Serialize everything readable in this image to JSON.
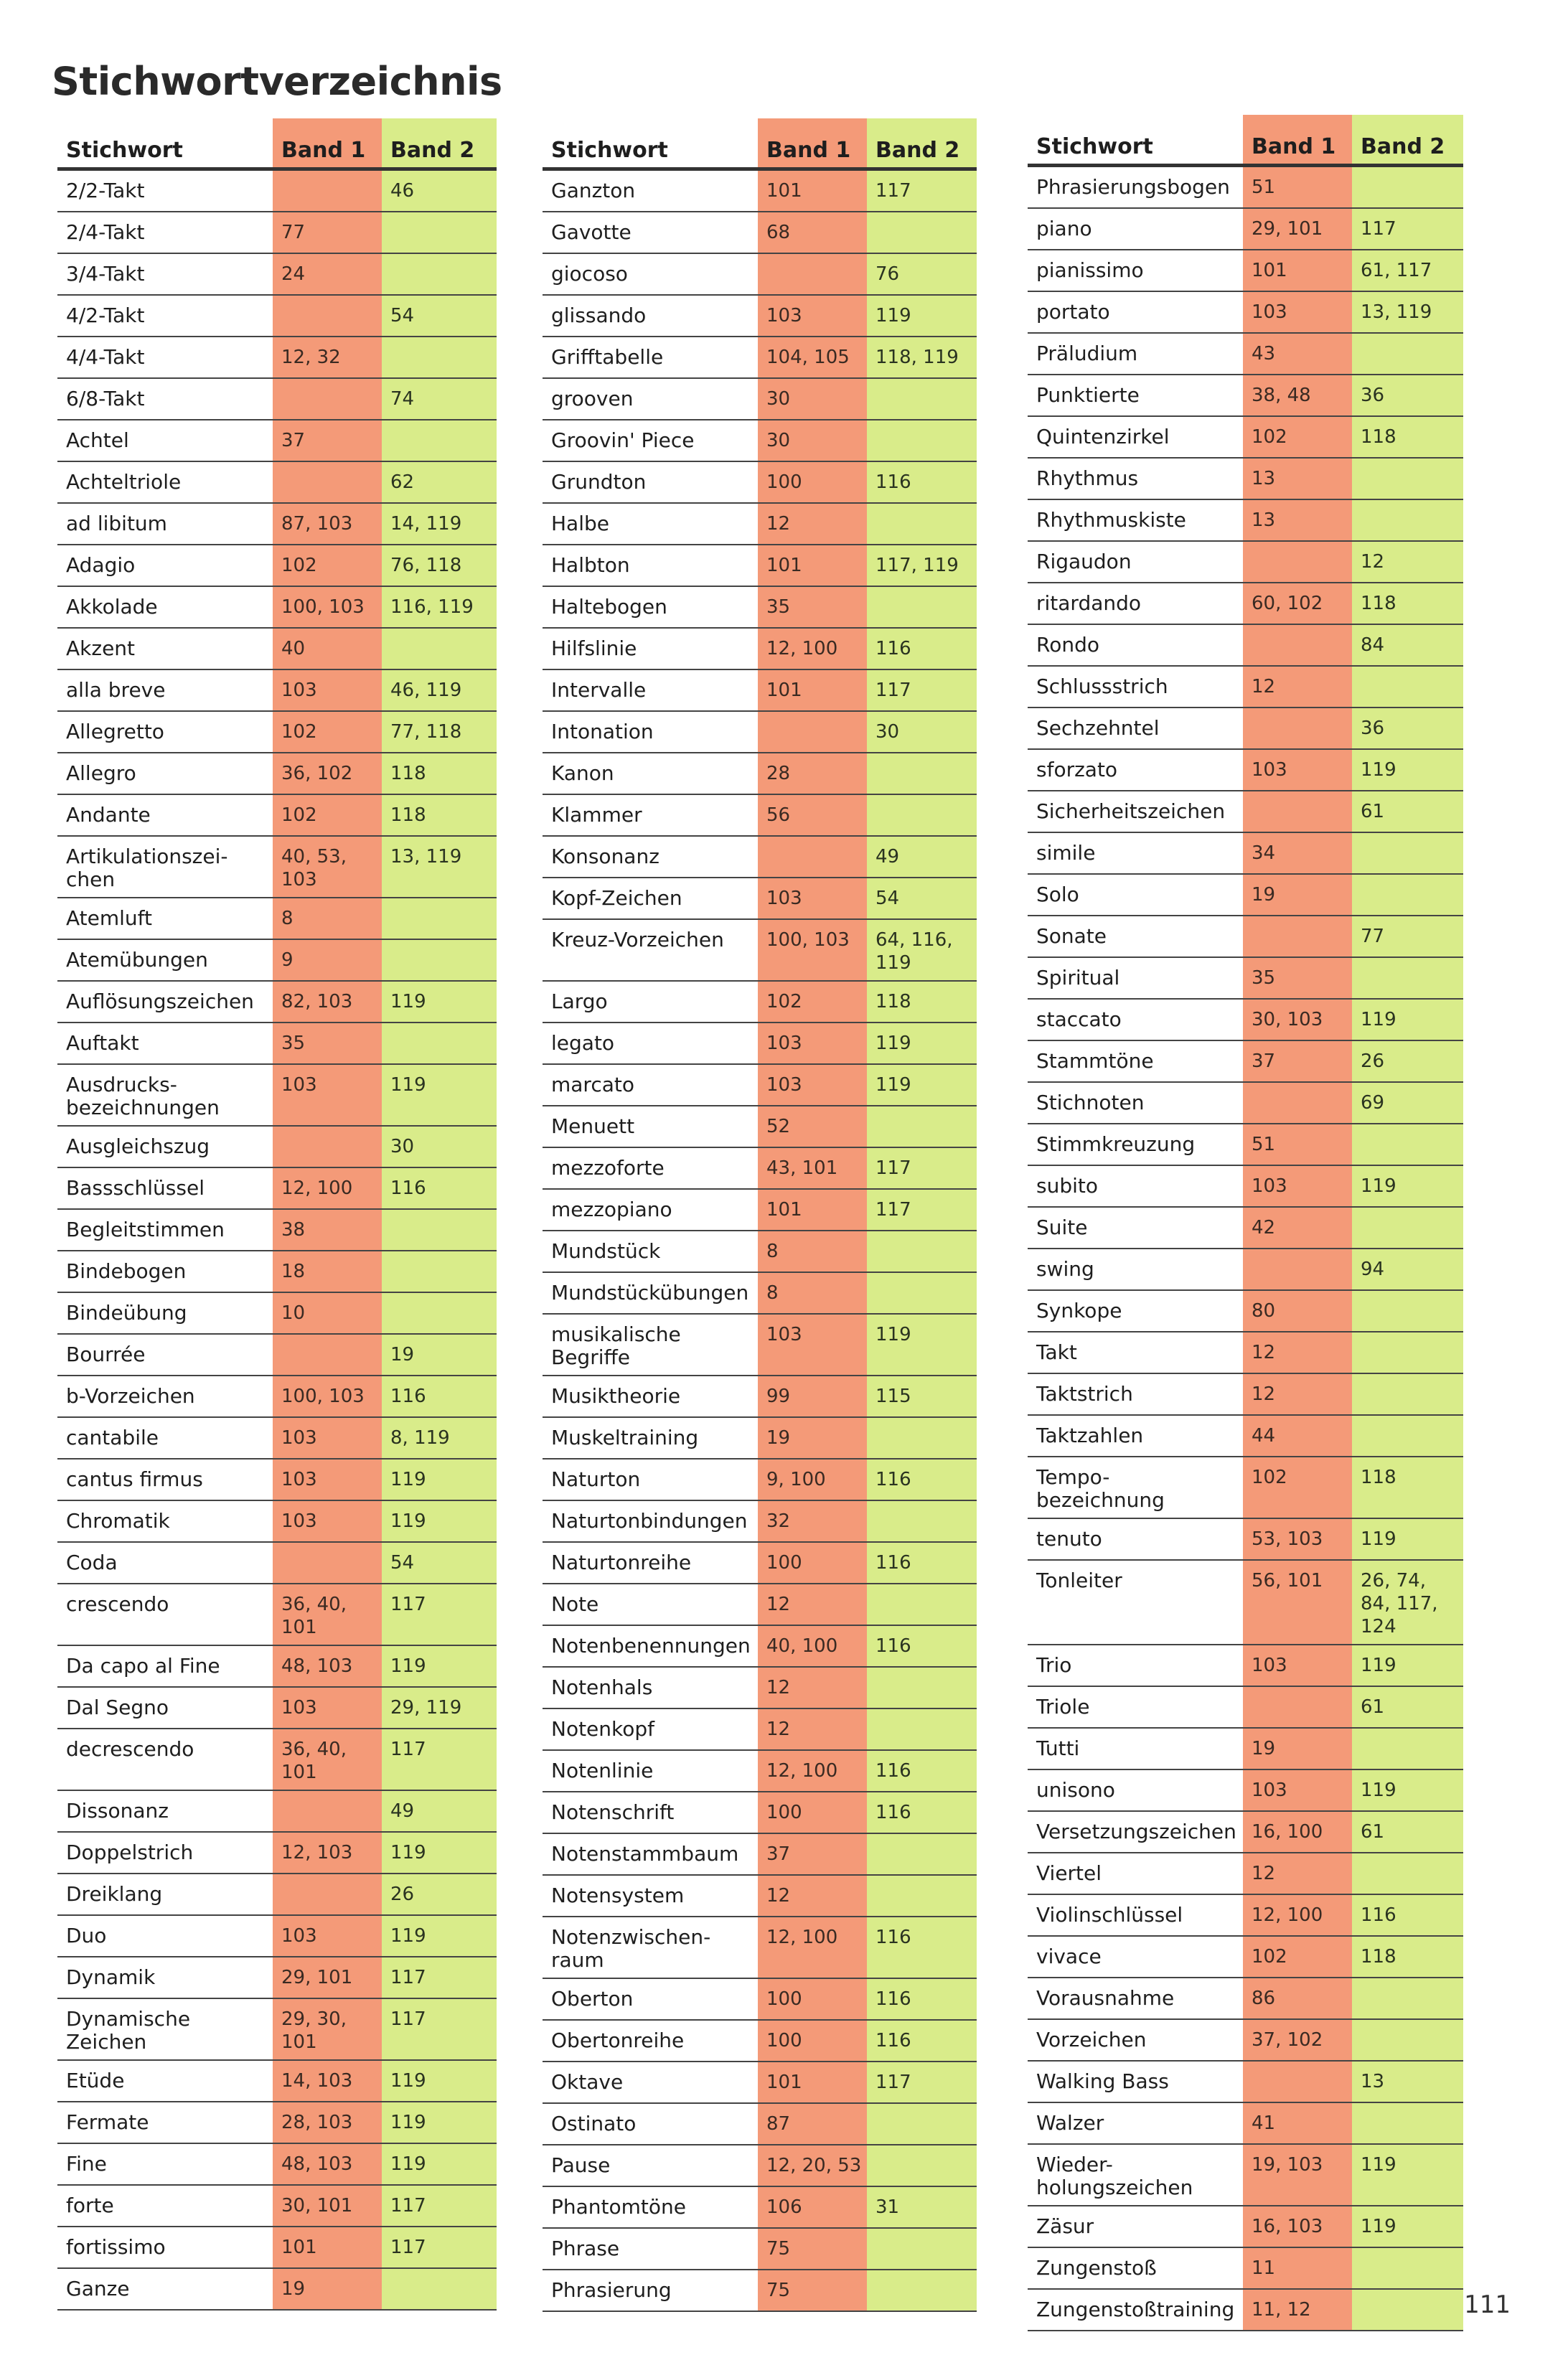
{
  "title": "Stichwortverzeichnis",
  "page_number": "111",
  "colors": {
    "band1": "#f49a78",
    "band2": "#d9ec8a"
  },
  "headers": {
    "keyword": "Stichwort",
    "band1": "Band 1",
    "band2": "Band 2"
  },
  "columns": [
    [
      [
        "2/2-Takt",
        "",
        "46"
      ],
      [
        "2/4-Takt",
        "77",
        ""
      ],
      [
        "3/4-Takt",
        "24",
        ""
      ],
      [
        "4/2-Takt",
        "",
        "54"
      ],
      [
        "4/4-Takt",
        "12, 32",
        ""
      ],
      [
        "6/8-Takt",
        "",
        "74"
      ],
      [
        "Achtel",
        "37",
        ""
      ],
      [
        "Achteltriole",
        "",
        "62"
      ],
      [
        "ad libitum",
        "87, 103",
        "14, 119"
      ],
      [
        "Adagio",
        "102",
        "76, 118"
      ],
      [
        "Akkolade",
        "100, 103",
        "116, 119"
      ],
      [
        "Akzent",
        "40",
        ""
      ],
      [
        "alla breve",
        "103",
        "46, 119"
      ],
      [
        "Allegretto",
        "102",
        "77, 118"
      ],
      [
        "Allegro",
        "36, 102",
        "118"
      ],
      [
        "Andante",
        "102",
        "118"
      ],
      [
        "Artikulationszei-\nchen",
        "40, 53,\n103",
        "13, 119"
      ],
      [
        "Atemluft",
        "8",
        ""
      ],
      [
        "Atemübungen",
        "9",
        ""
      ],
      [
        "Auflösungszeichen",
        "82, 103",
        "119"
      ],
      [
        "Auftakt",
        "35",
        ""
      ],
      [
        "Ausdrucks-\nbezeichnungen",
        "103",
        "119"
      ],
      [
        "Ausgleichszug",
        "",
        "30"
      ],
      [
        "Bassschlüssel",
        "12, 100",
        "116"
      ],
      [
        "Begleitstimmen",
        "38",
        ""
      ],
      [
        "Bindebogen",
        "18",
        ""
      ],
      [
        "Bindeübung",
        "10",
        ""
      ],
      [
        "Bourrée",
        "",
        "19"
      ],
      [
        "b-Vorzeichen",
        "100, 103",
        "116"
      ],
      [
        "cantabile",
        "103",
        "8, 119"
      ],
      [
        "cantus firmus",
        "103",
        "119"
      ],
      [
        "Chromatik",
        "103",
        "119"
      ],
      [
        "Coda",
        "",
        "54"
      ],
      [
        "crescendo",
        "36, 40,\n101",
        "117"
      ],
      [
        "Da capo al Fine",
        "48, 103",
        "119"
      ],
      [
        "Dal Segno",
        "103",
        "29, 119"
      ],
      [
        "decrescendo",
        "36, 40,\n101",
        "117"
      ],
      [
        "Dissonanz",
        "",
        "49"
      ],
      [
        "Doppelstrich",
        "12, 103",
        "119"
      ],
      [
        "Dreiklang",
        "",
        "26"
      ],
      [
        "Duo",
        "103",
        "119"
      ],
      [
        "Dynamik",
        "29, 101",
        "117"
      ],
      [
        "Dynamische\nZeichen",
        "29, 30,\n101",
        "117"
      ],
      [
        "Etüde",
        "14, 103",
        "119"
      ],
      [
        "Fermate",
        "28, 103",
        "119"
      ],
      [
        "Fine",
        "48, 103",
        "119"
      ],
      [
        "forte",
        "30, 101",
        "117"
      ],
      [
        "fortissimo",
        "101",
        "117"
      ],
      [
        "Ganze",
        "19",
        ""
      ]
    ],
    [
      [
        "Ganzton",
        "101",
        "117"
      ],
      [
        "Gavotte",
        "68",
        ""
      ],
      [
        "giocoso",
        "",
        "76"
      ],
      [
        "glissando",
        "103",
        "119"
      ],
      [
        "Grifftabelle",
        "104, 105",
        "118, 119"
      ],
      [
        "grooven",
        "30",
        ""
      ],
      [
        "Groovin' Piece",
        "30",
        ""
      ],
      [
        "Grundton",
        "100",
        "116"
      ],
      [
        "Halbe",
        "12",
        ""
      ],
      [
        "Halbton",
        "101",
        "117, 119"
      ],
      [
        "Haltebogen",
        "35",
        ""
      ],
      [
        "Hilfslinie",
        "12, 100",
        "116"
      ],
      [
        "Intervalle",
        "101",
        "117"
      ],
      [
        "Intonation",
        "",
        "30"
      ],
      [
        "Kanon",
        "28",
        ""
      ],
      [
        "Klammer",
        "56",
        ""
      ],
      [
        "Konsonanz",
        "",
        "49"
      ],
      [
        "Kopf-Zeichen",
        "103",
        "54"
      ],
      [
        "Kreuz-Vorzeichen",
        "100, 103",
        "64, 116,\n119"
      ],
      [
        "Largo",
        "102",
        "118"
      ],
      [
        "legato",
        "103",
        "119"
      ],
      [
        "marcato",
        "103",
        "119"
      ],
      [
        "Menuett",
        "52",
        ""
      ],
      [
        "mezzoforte",
        "43, 101",
        "117"
      ],
      [
        "mezzopiano",
        "101",
        "117"
      ],
      [
        "Mundstück",
        "8",
        ""
      ],
      [
        "Mundstückübungen",
        "8",
        ""
      ],
      [
        "musikalische\nBegriffe",
        "103",
        "119"
      ],
      [
        "Musiktheorie",
        "99",
        "115"
      ],
      [
        "Muskeltraining",
        "19",
        ""
      ],
      [
        "Naturton",
        "9, 100",
        "116"
      ],
      [
        "Naturtonbindungen",
        "32",
        ""
      ],
      [
        "Naturtonreihe",
        "100",
        "116"
      ],
      [
        "Note",
        "12",
        ""
      ],
      [
        "Notenbenennungen",
        "40, 100",
        "116"
      ],
      [
        "Notenhals",
        "12",
        ""
      ],
      [
        "Notenkopf",
        "12",
        ""
      ],
      [
        "Notenlinie",
        "12, 100",
        "116"
      ],
      [
        "Notenschrift",
        "100",
        "116"
      ],
      [
        "Notenstammbaum",
        "37",
        ""
      ],
      [
        "Notensystem",
        "12",
        ""
      ],
      [
        "Notenzwischen-\nraum",
        "12, 100",
        "116"
      ],
      [
        "Oberton",
        "100",
        "116"
      ],
      [
        "Obertonreihe",
        "100",
        "116"
      ],
      [
        "Oktave",
        "101",
        "117"
      ],
      [
        "Ostinato",
        "87",
        ""
      ],
      [
        "Pause",
        "12, 20, 53",
        ""
      ],
      [
        "Phantomtöne",
        "106",
        "31"
      ],
      [
        "Phrase",
        "75",
        ""
      ],
      [
        "Phrasierung",
        "75",
        ""
      ]
    ],
    [
      [
        "Phrasierungsbogen",
        "51",
        ""
      ],
      [
        "piano",
        "29, 101",
        "117"
      ],
      [
        "pianissimo",
        "101",
        "61, 117"
      ],
      [
        "portato",
        "103",
        "13, 119"
      ],
      [
        "Präludium",
        "43",
        ""
      ],
      [
        "Punktierte",
        "38, 48",
        "36"
      ],
      [
        "Quintenzirkel",
        "102",
        "118"
      ],
      [
        "Rhythmus",
        "13",
        ""
      ],
      [
        "Rhythmuskiste",
        "13",
        ""
      ],
      [
        "Rigaudon",
        "",
        "12"
      ],
      [
        "ritardando",
        "60, 102",
        "118"
      ],
      [
        "Rondo",
        "",
        "84"
      ],
      [
        "Schlussstrich",
        "12",
        ""
      ],
      [
        "Sechzehntel",
        "",
        "36"
      ],
      [
        "sforzato",
        "103",
        "119"
      ],
      [
        "Sicherheitszeichen",
        "",
        "61"
      ],
      [
        "simile",
        "34",
        ""
      ],
      [
        "Solo",
        "19",
        ""
      ],
      [
        "Sonate",
        "",
        "77"
      ],
      [
        "Spiritual",
        "35",
        ""
      ],
      [
        "staccato",
        "30, 103",
        "119"
      ],
      [
        "Stammtöne",
        "37",
        "26"
      ],
      [
        "Stichnoten",
        "",
        "69"
      ],
      [
        "Stimmkreuzung",
        "51",
        ""
      ],
      [
        "subito",
        "103",
        "119"
      ],
      [
        "Suite",
        "42",
        ""
      ],
      [
        "swing",
        "",
        "94"
      ],
      [
        "Synkope",
        "80",
        ""
      ],
      [
        "Takt",
        "12",
        ""
      ],
      [
        "Taktstrich",
        "12",
        ""
      ],
      [
        "Taktzahlen",
        "44",
        ""
      ],
      [
        "Tempo-\nbezeichnung",
        "102",
        "118"
      ],
      [
        "tenuto",
        "53, 103",
        "119"
      ],
      [
        "Tonleiter",
        "56, 101",
        "26, 74,\n84, 117,\n124"
      ],
      [
        "Trio",
        "103",
        "119"
      ],
      [
        "Triole",
        "",
        "61"
      ],
      [
        "Tutti",
        "19",
        ""
      ],
      [
        "unisono",
        "103",
        "119"
      ],
      [
        "Versetzungszeichen",
        "16, 100",
        "61"
      ],
      [
        "Viertel",
        "12",
        ""
      ],
      [
        "Violinschlüssel",
        "12, 100",
        "116"
      ],
      [
        "vivace",
        "102",
        "118"
      ],
      [
        "Vorausnahme",
        "86",
        ""
      ],
      [
        "Vorzeichen",
        "37, 102",
        ""
      ],
      [
        "Walking Bass",
        "",
        "13"
      ],
      [
        "Walzer",
        "41",
        ""
      ],
      [
        "Wieder-\nholungszeichen",
        "19, 103",
        "119"
      ],
      [
        "Zäsur",
        "16, 103",
        "119"
      ],
      [
        "Zungenstoß",
        "11",
        ""
      ],
      [
        "Zungenstoßtraining",
        "11, 12",
        ""
      ]
    ]
  ]
}
